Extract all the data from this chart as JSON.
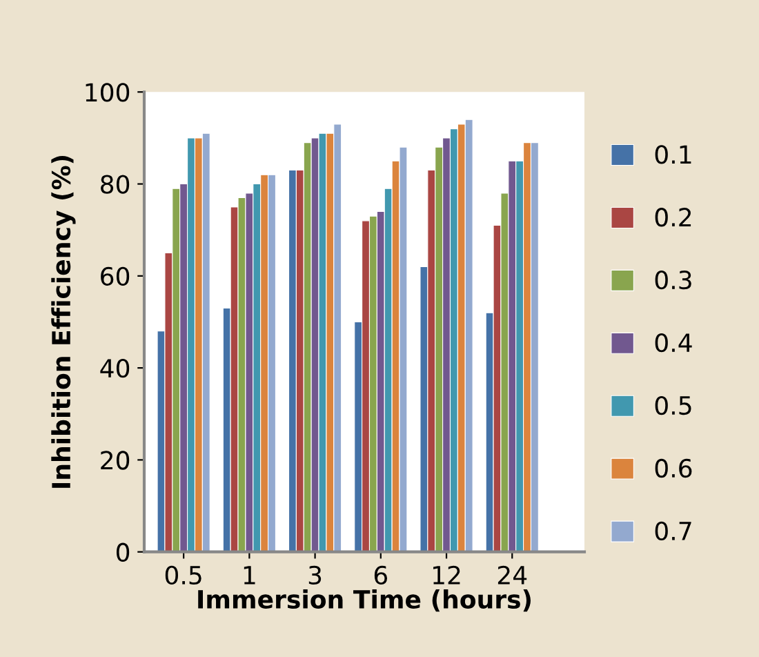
{
  "chart_data": {
    "type": "bar",
    "xlabel": "Immersion Time (hours)",
    "ylabel": "Inhibition Efficiency (%)",
    "categories": [
      "0.5",
      "1",
      "3",
      "6",
      "12",
      "24"
    ],
    "series": [
      {
        "name": "0.1",
        "color": "#4572a7",
        "values": [
          48,
          53,
          83,
          50,
          62,
          52
        ]
      },
      {
        "name": "0.2",
        "color": "#aa4643",
        "values": [
          65,
          75,
          83,
          72,
          83,
          71
        ]
      },
      {
        "name": "0.3",
        "color": "#89a54e",
        "values": [
          79,
          77,
          89,
          73,
          88,
          78
        ]
      },
      {
        "name": "0.4",
        "color": "#71588f",
        "values": [
          80,
          78,
          90,
          74,
          90,
          85
        ]
      },
      {
        "name": "0.5",
        "color": "#4198af",
        "values": [
          90,
          80,
          91,
          79,
          92,
          85
        ]
      },
      {
        "name": "0.6",
        "color": "#db843d",
        "values": [
          90,
          82,
          91,
          85,
          93,
          89
        ]
      },
      {
        "name": "0.7",
        "color": "#93a9cf",
        "values": [
          91,
          82,
          93,
          88,
          94,
          89
        ]
      }
    ],
    "ylim": [
      0,
      100
    ],
    "yticks": [
      0,
      20,
      40,
      60,
      80,
      100
    ],
    "grid": false,
    "legend": "right"
  }
}
